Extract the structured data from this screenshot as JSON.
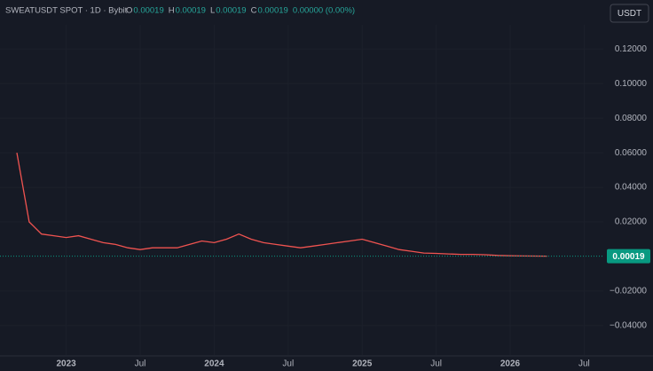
{
  "chart_data": {
    "type": "line",
    "title": "SWEATUSDT SPOT · 1D · Bybit",
    "ohlc": [
      {
        "label": "O",
        "value": 0.00019
      },
      {
        "label": "H",
        "value": 0.00019
      },
      {
        "label": "L",
        "value": 0.00019
      },
      {
        "label": "C",
        "value": 0.00019
      }
    ],
    "change": "0.00000 (0.00%)",
    "currency": "USDT",
    "last_value": 0.00019,
    "color": "#ef5350",
    "last_color": "#089981",
    "grid": true,
    "categories": [
      null,
      null,
      null,
      null,
      "2023",
      null,
      null,
      null,
      null,
      null,
      "Jul",
      null,
      null,
      null,
      null,
      null,
      "2024",
      null,
      null,
      null,
      null,
      null,
      "Jul",
      null,
      null,
      null,
      null,
      null,
      "2025",
      null,
      null,
      null,
      null,
      null,
      "Jul",
      null,
      null,
      null,
      null,
      null,
      "2026",
      null,
      null,
      null,
      null,
      null,
      "Jul"
    ],
    "values": [
      0.06,
      0.02,
      0.013,
      0.012,
      0.011,
      0.012,
      0.01,
      0.008,
      0.007,
      0.005,
      0.004,
      0.005,
      0.005,
      0.005,
      0.007,
      0.009,
      0.008,
      0.01,
      0.013,
      0.01,
      0.008,
      0.007,
      0.006,
      0.005,
      0.006,
      0.007,
      0.008,
      0.009,
      0.01,
      0.008,
      0.006,
      0.004,
      0.003,
      0.002,
      0.0018,
      0.0015,
      0.0012,
      0.0012,
      0.001,
      0.0006,
      0.0004,
      0.0003,
      0.00025,
      0.00019,
      null,
      null,
      null
    ],
    "ylim": [
      -0.057,
      0.134
    ],
    "yticks": [
      {
        "value": 0.12,
        "label": "0.12000"
      },
      {
        "value": 0.1,
        "label": "0.10000"
      },
      {
        "value": 0.08,
        "label": "0.08000"
      },
      {
        "value": 0.06,
        "label": "0.06000"
      },
      {
        "value": 0.04,
        "label": "0.04000"
      },
      {
        "value": 0.02,
        "label": "0.02000"
      },
      {
        "value": -0.02,
        "label": "−0.02000"
      },
      {
        "value": -0.04,
        "label": "−0.04000"
      }
    ]
  }
}
